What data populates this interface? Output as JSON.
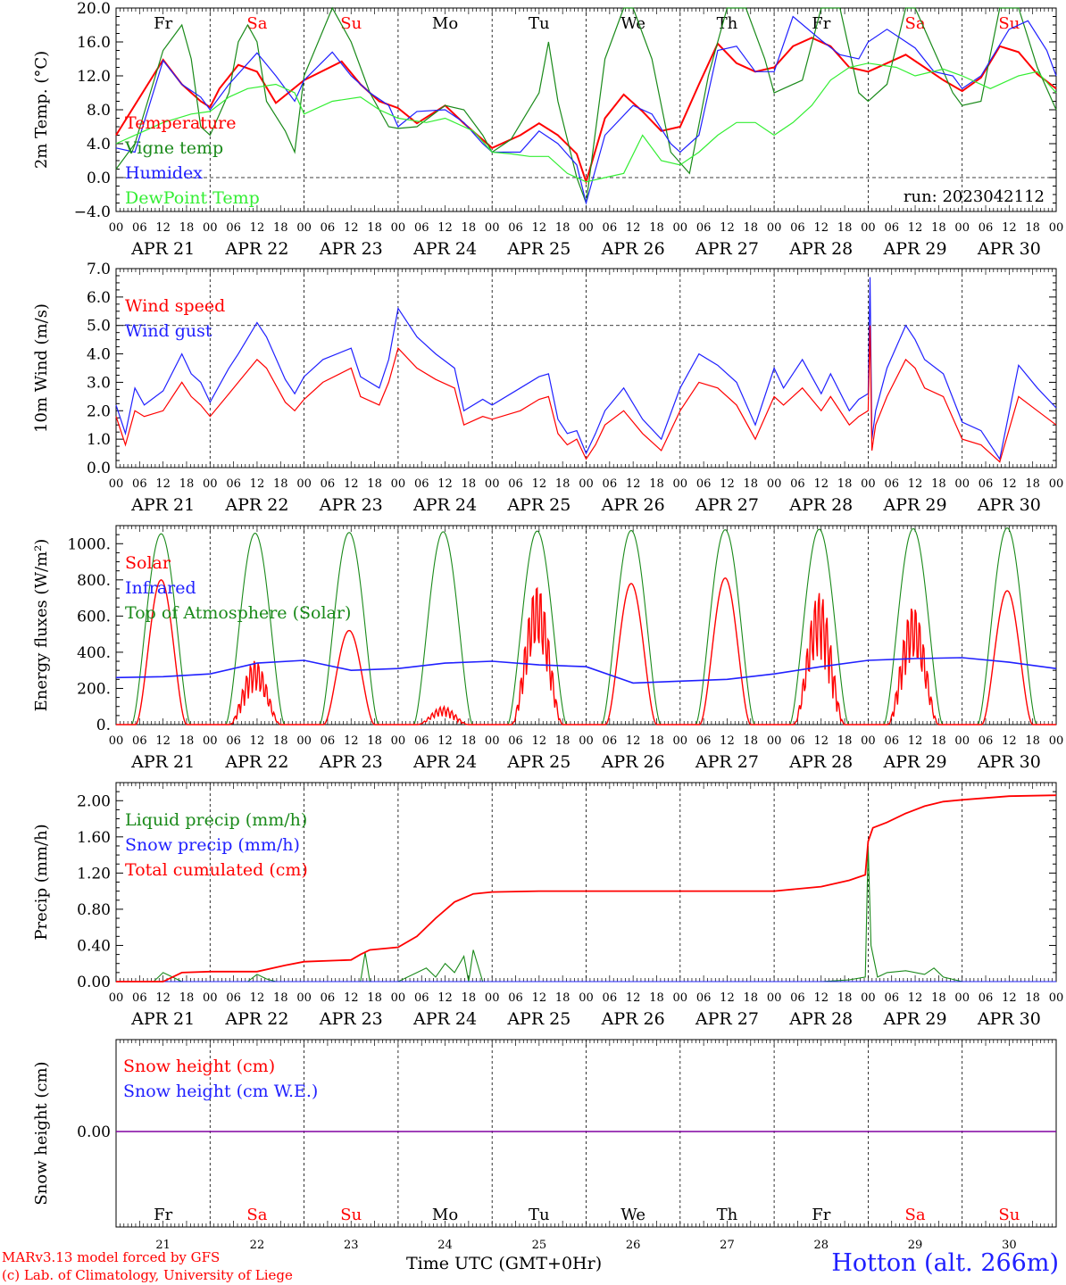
{
  "page": {
    "credit_line1": "MARv3.13 model forced by GFS",
    "credit_line2": "(c) Lab. of Climatology, University of Liege",
    "station": "Hotton (alt. 266m)",
    "x_axis_title": "Time UTC (GMT+0Hr)"
  },
  "colors": {
    "red": "#ff0000",
    "darkgreen": "#1a8a1a",
    "blue": "#2020ff",
    "lime": "#33ee33",
    "purple": "#8000a0",
    "black": "#000000"
  },
  "days": {
    "abbr": [
      "Fr",
      "Sa",
      "Su",
      "Mo",
      "Tu",
      "We",
      "Th",
      "Fr",
      "Sa",
      "Su"
    ],
    "weekend": [
      false,
      true,
      true,
      false,
      false,
      false,
      false,
      false,
      true,
      true
    ],
    "dates": [
      "APR 21",
      "APR 22",
      "APR 23",
      "APR 24",
      "APR 25",
      "APR 26",
      "APR 27",
      "APR 28",
      "APR 29",
      "APR 30"
    ],
    "numbers": [
      "21",
      "22",
      "23",
      "24",
      "25",
      "26",
      "27",
      "28",
      "29",
      "30"
    ],
    "hour_ticks": [
      "00",
      "06",
      "12",
      "18"
    ],
    "end_tick": "00"
  },
  "chart_data": [
    {
      "type": "line",
      "id": "temperature",
      "ylabel": "2m Temp. (°C)",
      "ylim": [
        -4,
        20
      ],
      "yticks": [
        "20.0",
        "16.0",
        "12.0",
        "8.0",
        "4.0",
        "0.0",
        "−4.0"
      ],
      "annotation": "run: 2023042112",
      "legend_placement": "left",
      "series": [
        {
          "name": "Temperature",
          "color": "red",
          "x": [
            0,
            0.5,
            0.7,
            0.9,
            1,
            1.1,
            1.3,
            1.5,
            1.7,
            2,
            2.4,
            2.6,
            2.8,
            3,
            3.2,
            3.5,
            3.7,
            4,
            4.3,
            4.5,
            4.7,
            4.9,
            5,
            5.2,
            5.4,
            5.6,
            5.8,
            6,
            6.2,
            6.4,
            6.6,
            6.8,
            7,
            7.2,
            7.4,
            7.6,
            7.8,
            8,
            8.2,
            8.4,
            8.6,
            8.8,
            9,
            9.2,
            9.4,
            9.6,
            9.8,
            10
          ],
          "y": [
            5,
            13.9,
            11,
            9,
            8.3,
            10.5,
            13.3,
            12.5,
            8.8,
            11.5,
            13.7,
            11,
            9,
            8.2,
            6.4,
            8.5,
            6.4,
            3.5,
            5,
            6.4,
            5,
            2.8,
            -0.5,
            7,
            9.8,
            7.8,
            5.5,
            6,
            11,
            15.8,
            13.5,
            12.5,
            13,
            15.5,
            16.5,
            15.5,
            13,
            12.5,
            13.5,
            14.5,
            13,
            11.5,
            10.2,
            11.8,
            15.5,
            14.8,
            12.2,
            10.5
          ]
        },
        {
          "name": "Vigne temp",
          "color": "darkgreen",
          "x": [
            0,
            0.2,
            0.5,
            0.7,
            0.8,
            0.9,
            1,
            1.2,
            1.3,
            1.4,
            1.5,
            1.6,
            1.8,
            1.9,
            2,
            2.3,
            2.5,
            2.7,
            2.9,
            3,
            3.2,
            3.5,
            3.7,
            3.9,
            4,
            4.2,
            4.5,
            4.6,
            4.7,
            4.9,
            5,
            5.2,
            5.4,
            5.5,
            5.7,
            5.9,
            6.1,
            6.3,
            6.5,
            6.7,
            6.9,
            7,
            7.3,
            7.5,
            7.7,
            7.9,
            8,
            8.2,
            8.4,
            8.5,
            8.7,
            8.9,
            9,
            9.2,
            9.4,
            9.6,
            9.8,
            10
          ],
          "y": [
            1,
            4,
            15,
            18,
            14,
            6,
            5,
            10,
            16,
            18,
            16,
            9,
            5.5,
            3,
            12,
            20,
            16,
            10,
            6,
            5.8,
            6,
            8.5,
            8,
            5,
            3,
            4.5,
            10,
            16,
            9,
            0,
            -3,
            14,
            20,
            20,
            14,
            3,
            0.5,
            12,
            20,
            20,
            14,
            10,
            11.5,
            20,
            20,
            10,
            9,
            11,
            20,
            20,
            15,
            10,
            8.5,
            9,
            20,
            20,
            13,
            8
          ]
        },
        {
          "name": "Humidex",
          "color": "blue",
          "x": [
            0,
            0.2,
            0.5,
            0.7,
            0.9,
            1,
            1.2,
            1.5,
            1.7,
            1.9,
            2,
            2.3,
            2.5,
            2.7,
            2.9,
            3,
            3.2,
            3.5,
            3.7,
            3.9,
            4,
            4.3,
            4.5,
            4.7,
            4.9,
            5,
            5.2,
            5.5,
            5.7,
            5.9,
            6,
            6.2,
            6.4,
            6.6,
            6.8,
            7,
            7.2,
            7.5,
            7.7,
            7.9,
            8,
            8.2,
            8.5,
            8.7,
            8.9,
            9,
            9.2,
            9.5,
            9.7,
            9.9,
            10
          ],
          "y": [
            3.5,
            3,
            13.8,
            11,
            9.5,
            8,
            11,
            14.7,
            12,
            9,
            11.5,
            14.8,
            12,
            10,
            8.5,
            6,
            7.8,
            8,
            6.5,
            4,
            3,
            3,
            5.5,
            4,
            1.5,
            -3,
            5,
            8.5,
            7.5,
            4,
            3,
            5,
            15,
            15.5,
            12.5,
            12.5,
            19,
            16.2,
            14.5,
            14,
            16,
            17.5,
            15.3,
            12.5,
            12,
            10.5,
            12,
            17.5,
            18.5,
            15,
            12
          ]
        },
        {
          "name": "DewPoint Temp",
          "color": "lime",
          "x": [
            0,
            0.3,
            0.5,
            0.8,
            1,
            1.2,
            1.4,
            1.7,
            1.9,
            2,
            2.3,
            2.6,
            2.8,
            3,
            3.3,
            3.5,
            3.8,
            4,
            4.2,
            4.4,
            4.6,
            4.8,
            5,
            5.2,
            5.4,
            5.6,
            5.8,
            6,
            6.2,
            6.4,
            6.6,
            6.8,
            7,
            7.2,
            7.4,
            7.6,
            7.8,
            8,
            8.3,
            8.5,
            8.8,
            9,
            9.3,
            9.6,
            9.8,
            10
          ],
          "y": [
            4,
            5.5,
            6.5,
            7.5,
            7.8,
            9.5,
            10.5,
            11,
            10,
            7.5,
            9,
            9.5,
            8,
            7,
            6.5,
            7,
            5.5,
            3,
            2.8,
            2.5,
            2.5,
            0.5,
            -0.5,
            0,
            0.5,
            5,
            2,
            1.5,
            3,
            5,
            6.5,
            6.5,
            5,
            6.5,
            8.5,
            11.5,
            13,
            13.5,
            13,
            12,
            12.8,
            12,
            10.5,
            12,
            12.5,
            10
          ]
        }
      ]
    },
    {
      "type": "line",
      "id": "wind",
      "ylabel": "10m Wind (m/s)",
      "ylim": [
        0,
        7
      ],
      "yticks": [
        "7.0",
        "6.0",
        "5.0",
        "4.0",
        "3.0",
        "2.0",
        "1.0",
        "0.0"
      ],
      "legend_placement": "left",
      "series": [
        {
          "name": "Wind speed",
          "color": "red",
          "x": [
            0,
            0.1,
            0.2,
            0.3,
            0.5,
            0.7,
            0.8,
            0.9,
            1,
            1.2,
            1.3,
            1.5,
            1.6,
            1.8,
            1.9,
            2,
            2.2,
            2.5,
            2.6,
            2.8,
            2.9,
            3,
            3.2,
            3.4,
            3.6,
            3.7,
            3.9,
            4,
            4.3,
            4.5,
            4.6,
            4.7,
            4.8,
            4.9,
            5,
            5.1,
            5.2,
            5.4,
            5.6,
            5.8,
            6,
            6.2,
            6.4,
            6.6,
            6.8,
            7,
            7.1,
            7.3,
            7.5,
            7.6,
            7.8,
            7.9,
            8,
            8.02,
            8.04,
            8.08,
            8.2,
            8.4,
            8.5,
            8.6,
            8.8,
            9,
            9.2,
            9.4,
            9.6,
            9.8,
            10
          ],
          "y": [
            1.8,
            0.8,
            2,
            1.8,
            2,
            3,
            2.5,
            2.2,
            1.8,
            2.6,
            3,
            3.8,
            3.5,
            2.3,
            2,
            2.4,
            3,
            3.5,
            2.5,
            2.2,
            3,
            4.2,
            3.5,
            3.1,
            2.8,
            1.5,
            1.8,
            1.7,
            2,
            2.4,
            2.5,
            1.2,
            0.8,
            1,
            0.3,
            0.8,
            1.5,
            2,
            1.2,
            0.6,
            2,
            3,
            2.8,
            2.2,
            1,
            2.5,
            2.2,
            2.8,
            2,
            2.5,
            1.5,
            1.8,
            2,
            5,
            0.6,
            1.5,
            2.5,
            3.8,
            3.5,
            2.8,
            2.5,
            1,
            0.8,
            0.2,
            2.5,
            2,
            1.5
          ]
        },
        {
          "name": "Wind gust",
          "color": "blue",
          "x": [
            0,
            0.1,
            0.2,
            0.3,
            0.5,
            0.7,
            0.8,
            0.9,
            1,
            1.2,
            1.3,
            1.5,
            1.6,
            1.8,
            1.9,
            2,
            2.2,
            2.5,
            2.6,
            2.8,
            2.9,
            3,
            3.2,
            3.4,
            3.6,
            3.7,
            3.9,
            4,
            4.3,
            4.5,
            4.6,
            4.7,
            4.8,
            4.9,
            5,
            5.1,
            5.2,
            5.4,
            5.6,
            5.8,
            6,
            6.2,
            6.4,
            6.6,
            6.8,
            7,
            7.1,
            7.3,
            7.5,
            7.6,
            7.8,
            7.9,
            8,
            8.02,
            8.04,
            8.08,
            8.2,
            8.4,
            8.5,
            8.6,
            8.8,
            9,
            9.2,
            9.4,
            9.6,
            9.8,
            10
          ],
          "y": [
            2.2,
            1.2,
            2.8,
            2.2,
            2.7,
            4,
            3.3,
            3,
            2.3,
            3.5,
            4,
            5.1,
            4.6,
            3.1,
            2.6,
            3.2,
            3.8,
            4.2,
            3.2,
            2.8,
            3.8,
            5.6,
            4.6,
            4,
            3.5,
            2,
            2.4,
            2.2,
            2.8,
            3.2,
            3.3,
            1.7,
            1.2,
            1.3,
            0.5,
            1.2,
            2,
            2.8,
            1.7,
            1,
            2.8,
            4,
            3.6,
            3,
            1.5,
            3.5,
            2.8,
            3.8,
            2.6,
            3.3,
            2,
            2.4,
            2.6,
            6.7,
            1,
            2,
            3.5,
            5,
            4.5,
            3.8,
            3.3,
            1.6,
            1.3,
            0.3,
            3.6,
            2.8,
            2.1
          ]
        }
      ]
    },
    {
      "type": "line",
      "id": "energy",
      "ylabel": "Energy fluxes (W/m²)",
      "ylim": [
        0,
        1100
      ],
      "yticks": [
        "1000.",
        "800.",
        "600.",
        "400.",
        "200.",
        "0."
      ],
      "legend_placement": "left",
      "series": [
        {
          "name": "Solar",
          "color": "red",
          "daily_peak": [
            800,
            360,
            520,
            100,
            790,
            780,
            810,
            740,
            670,
            740
          ]
        },
        {
          "name": "Infrared",
          "color": "blue",
          "x": [
            0,
            0.5,
            1,
            1.5,
            2,
            2.5,
            3,
            3.5,
            4,
            4.5,
            5,
            5.5,
            6,
            6.5,
            7,
            7.5,
            8,
            8.5,
            9,
            9.5,
            10
          ],
          "y": [
            260,
            265,
            280,
            340,
            355,
            300,
            310,
            340,
            350,
            330,
            320,
            230,
            240,
            250,
            280,
            320,
            355,
            365,
            370,
            345,
            310
          ]
        },
        {
          "name": "Top of Atmosphere (Solar)",
          "color": "darkgreen",
          "daily_peak": [
            1055,
            1058,
            1062,
            1066,
            1070,
            1073,
            1077,
            1080,
            1083,
            1087
          ]
        }
      ]
    },
    {
      "type": "line",
      "id": "precip",
      "ylabel": "Precip (mm/h)",
      "ylim": [
        0,
        2.2
      ],
      "yticks": [
        "2.00",
        "1.60",
        "1.20",
        "0.80",
        "0.40",
        "0.00"
      ],
      "legend_placement": "left",
      "series": [
        {
          "name": "Liquid precip (mm/h)",
          "color": "darkgreen",
          "x": [
            0,
            0.4,
            0.5,
            0.6,
            0.7,
            1.4,
            1.5,
            1.6,
            1.7,
            2.6,
            2.65,
            2.7,
            3,
            3.2,
            3.3,
            3.4,
            3.5,
            3.6,
            3.7,
            3.75,
            3.8,
            3.9,
            4,
            7.5,
            7.8,
            7.97,
            8,
            8.03,
            8.1,
            8.2,
            8.4,
            8.6,
            8.7,
            8.8,
            9,
            9.5,
            10
          ],
          "y": [
            0,
            0,
            0.1,
            0.05,
            0,
            0,
            0.08,
            0.03,
            0,
            0,
            0.32,
            0,
            0,
            0.1,
            0.15,
            0.05,
            0.2,
            0.1,
            0.28,
            0,
            0.35,
            0,
            0,
            0,
            0.02,
            0.05,
            1.5,
            0.4,
            0.05,
            0.1,
            0.12,
            0.08,
            0.15,
            0.05,
            0,
            0,
            0
          ]
        },
        {
          "name": "Snow precip (mm/h)",
          "color": "blue",
          "x": [
            0,
            10
          ],
          "y": [
            0,
            0
          ]
        },
        {
          "name": "Total cumulated (cm)",
          "color": "red",
          "x": [
            0,
            0.5,
            0.7,
            1,
            1.5,
            1.8,
            2,
            2.5,
            2.6,
            2.7,
            3,
            3.2,
            3.4,
            3.6,
            3.8,
            4,
            4.5,
            5,
            6,
            7,
            7.5,
            7.8,
            7.97,
            8,
            8.05,
            8.2,
            8.4,
            8.6,
            8.8,
            9,
            9.5,
            10
          ],
          "y": [
            0,
            0,
            0.1,
            0.11,
            0.11,
            0.18,
            0.22,
            0.24,
            0.3,
            0.35,
            0.38,
            0.5,
            0.7,
            0.88,
            0.97,
            0.99,
            1,
            1,
            1,
            1,
            1.05,
            1.12,
            1.18,
            1.55,
            1.7,
            1.76,
            1.86,
            1.94,
            1.99,
            2.01,
            2.05,
            2.06
          ]
        }
      ]
    },
    {
      "type": "line",
      "id": "snow",
      "ylabel": "Snow height (cm)",
      "yticks": [
        "0.00"
      ],
      "legend_placement": "left",
      "series": [
        {
          "name": "Snow height (cm)",
          "color": "red",
          "x": [
            0,
            10
          ],
          "y": [
            0,
            0
          ]
        },
        {
          "name": "Snow height (cm W.E.)",
          "color": "blue",
          "x": [
            0,
            10
          ],
          "y": [
            0,
            0
          ]
        }
      ]
    }
  ]
}
